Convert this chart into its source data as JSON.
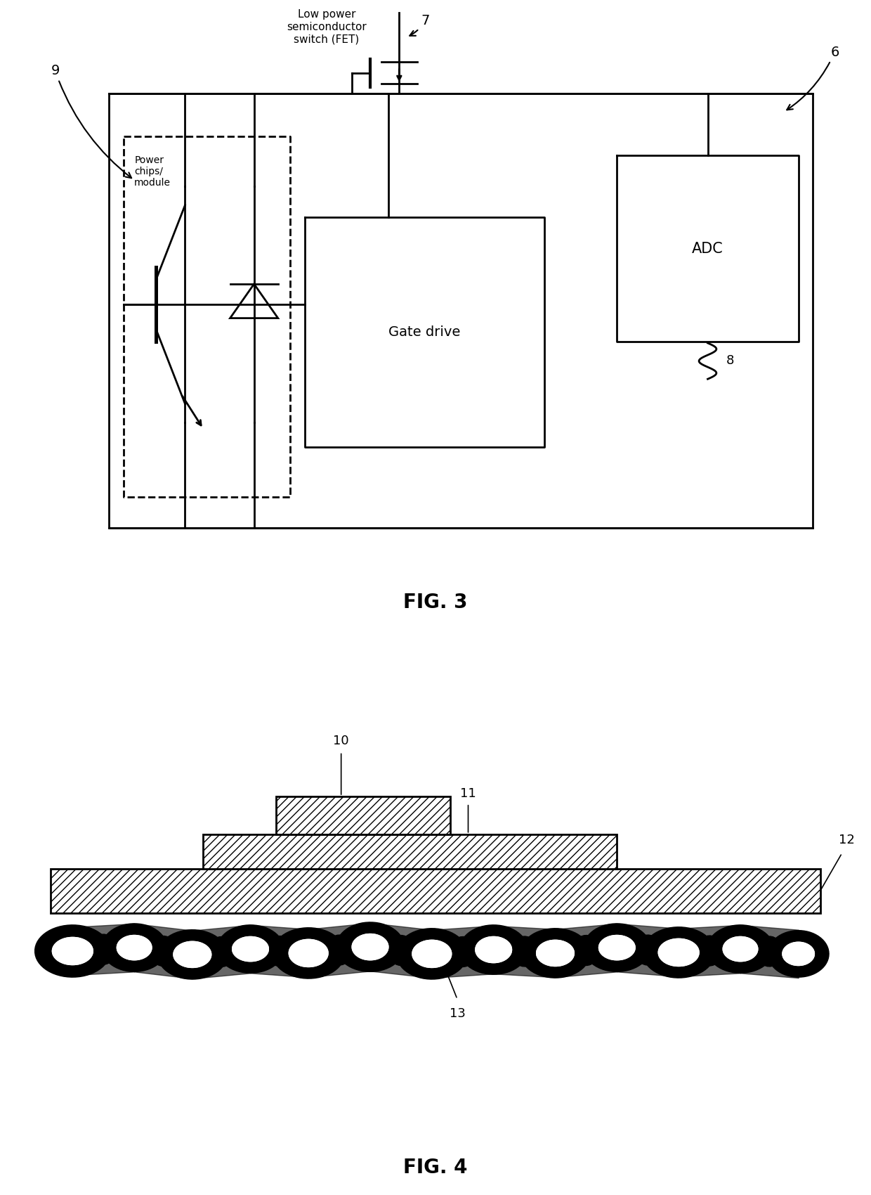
{
  "fig3": {
    "title": "FIG. 3",
    "label_low_power": "Low power\nsemiconductor\nswitch (FET)",
    "label_7": "7",
    "label_6": "6",
    "label_9": "9",
    "label_8": "8",
    "label_gate_drive": "Gate drive",
    "label_adc": "ADC",
    "label_power": "Power\nchips/\nmodule"
  },
  "fig4": {
    "title": "FIG. 4",
    "label_10": "10",
    "label_11": "11",
    "label_12": "12",
    "label_13": "13"
  },
  "bg_color": "#ffffff",
  "line_color": "#000000"
}
